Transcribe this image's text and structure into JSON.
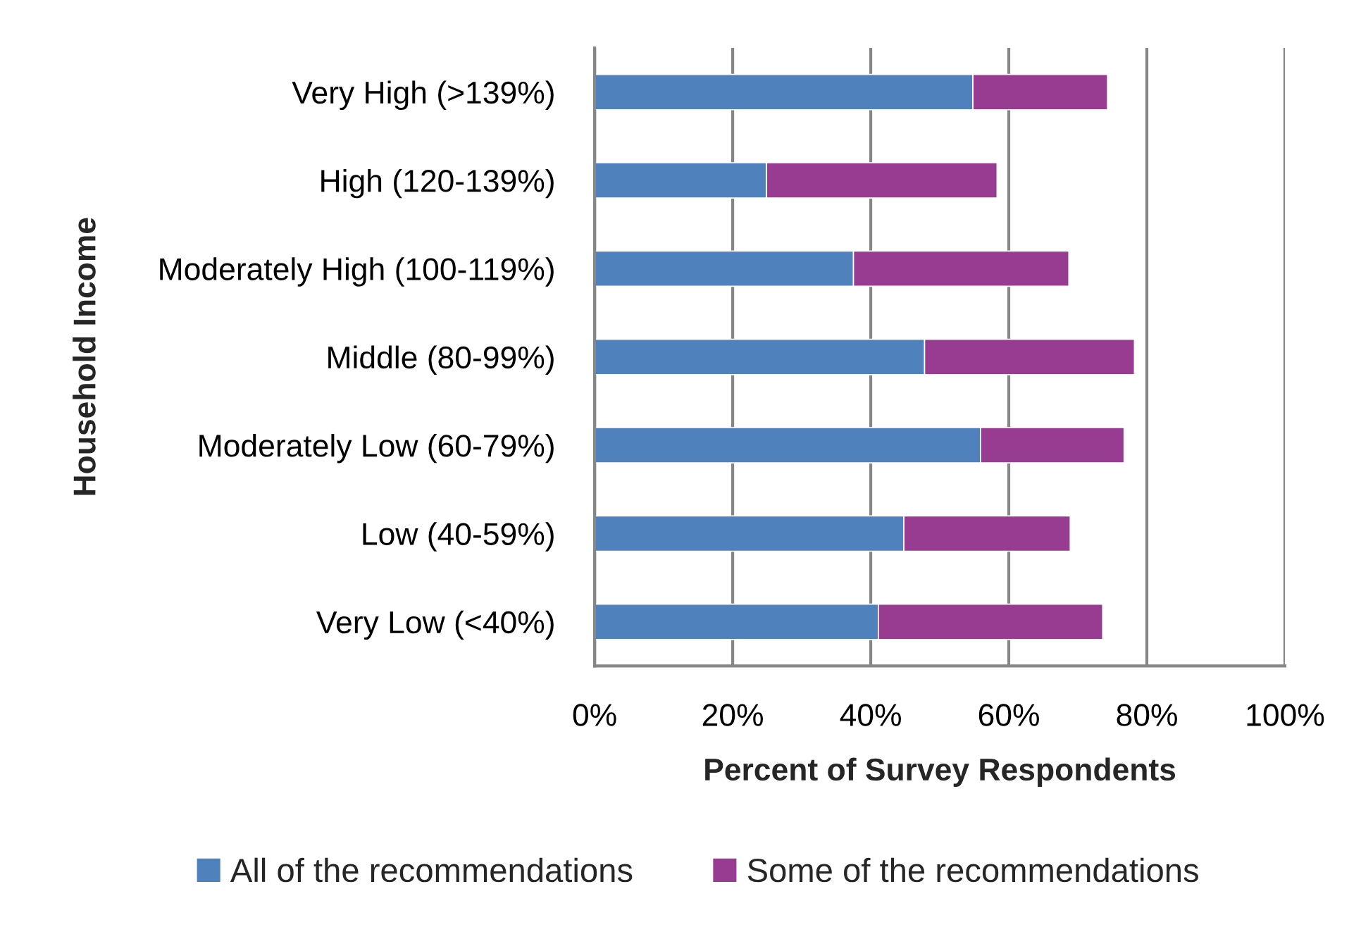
{
  "chart_data": {
    "type": "bar",
    "orientation": "horizontal",
    "stacked": true,
    "categories": [
      "Very High (>139%)",
      "High (120-139%)",
      "Moderately High (100-119%)",
      "Middle (80-99%)",
      "Moderately Low (60-79%)",
      "Low (40-59%)",
      "Very Low (<40%)"
    ],
    "series": [
      {
        "name": "All of the recommendations",
        "color": "#4f81bd",
        "values": [
          54.8,
          24.9,
          37.5,
          47.8,
          55.9,
          44.8,
          41.1
        ]
      },
      {
        "name": "Some of the recommendations",
        "color": "#983c92",
        "values": [
          19.5,
          33.4,
          31.2,
          30.4,
          20.8,
          24.1,
          32.5
        ]
      }
    ],
    "xlim": [
      0,
      100
    ],
    "xticks": [
      {
        "value": 0,
        "label": "0%"
      },
      {
        "value": 20,
        "label": "20%"
      },
      {
        "value": 40,
        "label": "40%"
      },
      {
        "value": 60,
        "label": "60%"
      },
      {
        "value": 80,
        "label": "80%"
      },
      {
        "value": 100,
        "label": "100%"
      }
    ],
    "xlabel": "Percent of Survey Respondents",
    "ylabel": "Household Income",
    "grid": "x",
    "legend": "bottom"
  }
}
